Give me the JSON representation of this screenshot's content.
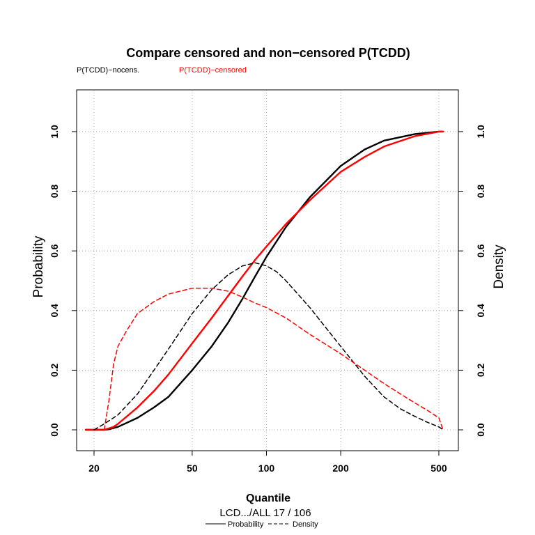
{
  "chart_data": {
    "type": "line",
    "title": "Compare censored and non−censored P(TCDD)",
    "xlabel": "Quantile",
    "ylabel": "Probability",
    "y2label": "Density",
    "x_scale": "log",
    "x_ticks": [
      20,
      50,
      100,
      200,
      500
    ],
    "y_ticks": [
      0.0,
      0.2,
      0.4,
      0.6,
      0.8,
      1.0
    ],
    "y_tick_labels": [
      "0.0",
      "0.2",
      "0.4",
      "0.6",
      "0.8",
      "1.0"
    ],
    "y2_ticks": [
      0.0,
      0.2,
      0.4,
      0.6,
      0.8,
      1.0
    ],
    "y2_tick_labels": [
      "0.0",
      "0.2",
      "0.4",
      "0.6",
      "0.8",
      "1.0"
    ],
    "xlim": [
      17,
      600
    ],
    "ylim": [
      -0.07,
      1.14
    ],
    "y2lim": [
      -0.07,
      1.14
    ],
    "grid": true,
    "legend_top": [
      {
        "label": "P(TCDD)−nocens.",
        "color": "#000000"
      },
      {
        "label": "P(TCDD)−censored",
        "color": "#ff0000"
      }
    ],
    "subtitle": "LCD.../ALL  17   / 106",
    "linetype_legend": [
      {
        "label": "Probability",
        "style": "solid"
      },
      {
        "label": "Density",
        "style": "dashed"
      }
    ],
    "series": [
      {
        "name": "P(TCDD)−nocens.",
        "kind": "probability",
        "color": "#000000",
        "dash": false,
        "x": [
          18.5,
          20,
          22,
          23,
          25,
          30,
          35,
          40,
          50,
          60,
          70,
          80,
          90,
          100,
          120,
          150,
          200,
          250,
          300,
          400,
          500,
          520
        ],
        "y": [
          0.0,
          0.0,
          0.0,
          0.002,
          0.01,
          0.04,
          0.075,
          0.11,
          0.2,
          0.28,
          0.36,
          0.44,
          0.515,
          0.58,
          0.68,
          0.78,
          0.885,
          0.94,
          0.97,
          0.992,
          1.0,
          1.0
        ]
      },
      {
        "name": "P(TCDD)−censored",
        "kind": "probability",
        "color": "#ff0000",
        "dash": false,
        "x": [
          18.5,
          20,
          22,
          24,
          25,
          30,
          35,
          40,
          50,
          60,
          70,
          80,
          90,
          100,
          120,
          150,
          200,
          250,
          300,
          400,
          500,
          520
        ],
        "y": [
          0.0,
          0.0,
          0.0,
          0.01,
          0.02,
          0.075,
          0.13,
          0.185,
          0.29,
          0.375,
          0.45,
          0.515,
          0.57,
          0.615,
          0.69,
          0.77,
          0.865,
          0.915,
          0.95,
          0.985,
          1.0,
          1.0
        ]
      },
      {
        "name": "P(TCDD)−nocens.",
        "kind": "density",
        "color": "#000000",
        "dash": true,
        "x": [
          20,
          22,
          25,
          30,
          35,
          40,
          50,
          60,
          70,
          80,
          90,
          100,
          110,
          120,
          150,
          200,
          250,
          300,
          350,
          400,
          450,
          500,
          520
        ],
        "y": [
          0.0,
          0.02,
          0.05,
          0.12,
          0.2,
          0.27,
          0.39,
          0.47,
          0.52,
          0.55,
          0.56,
          0.55,
          0.53,
          0.5,
          0.41,
          0.28,
          0.18,
          0.11,
          0.07,
          0.045,
          0.025,
          0.01,
          0.0
        ]
      },
      {
        "name": "P(TCDD)−censored",
        "kind": "density",
        "color": "#ff0000",
        "dash": true,
        "x": [
          22,
          23,
          24,
          25,
          27,
          30,
          35,
          40,
          50,
          60,
          70,
          80,
          90,
          100,
          120,
          150,
          200,
          250,
          300,
          350,
          400,
          450,
          500,
          520
        ],
        "y": [
          0.0,
          0.1,
          0.22,
          0.28,
          0.33,
          0.39,
          0.43,
          0.455,
          0.475,
          0.475,
          0.465,
          0.445,
          0.425,
          0.41,
          0.375,
          0.32,
          0.255,
          0.2,
          0.155,
          0.12,
          0.09,
          0.065,
          0.04,
          0.0
        ]
      }
    ]
  }
}
